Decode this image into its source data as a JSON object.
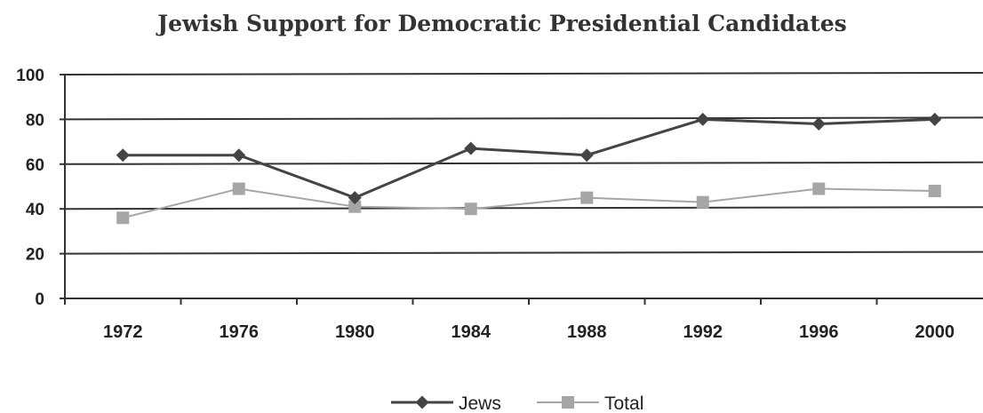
{
  "chart_data": {
    "type": "line",
    "title": "Jewish Support for Democratic Presidential Candidates",
    "xlabel": "",
    "ylabel": "",
    "categories": [
      "1972",
      "1976",
      "1980",
      "1984",
      "1988",
      "1992",
      "1996",
      "2000"
    ],
    "y_ticks": [
      "0",
      "20",
      "40",
      "60",
      "80",
      "100"
    ],
    "ylim": [
      0,
      100
    ],
    "grid": true,
    "legend_position": "bottom",
    "series": [
      {
        "name": "Jews",
        "marker": "diamond",
        "color": "#444444",
        "values": [
          64,
          64,
          45,
          67,
          64,
          80,
          78,
          80
        ]
      },
      {
        "name": "Total",
        "marker": "square",
        "color": "#a6a6a6",
        "values": [
          36,
          49,
          41,
          40,
          45,
          43,
          49,
          48
        ]
      }
    ]
  }
}
